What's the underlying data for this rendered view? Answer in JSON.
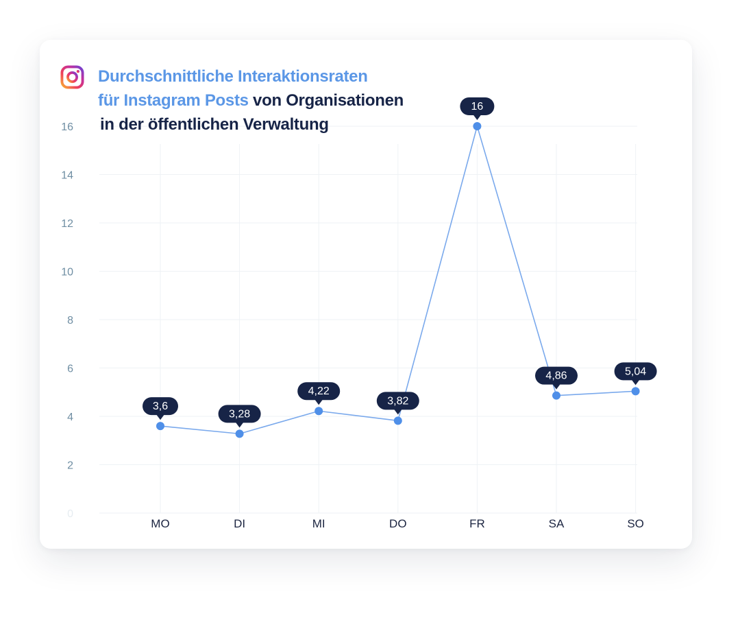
{
  "title": {
    "line1": "Durchschnittliche Interaktionsraten",
    "line2_accent": "für Instagram Posts",
    "line2_rest": " von Organisationen",
    "line3": "in der öffentlichen Verwaltung"
  },
  "icon": "instagram-icon",
  "colors": {
    "accent": "#5b97e6",
    "line": "#7aa9ec",
    "point": "#4f8fe8",
    "label_bg": "#172447",
    "title_dark": "#172447",
    "grid": "#eef2f5",
    "tick": "#6f8ea3"
  },
  "chart_data": {
    "type": "line",
    "categories": [
      "MO",
      "DI",
      "MI",
      "DO",
      "FR",
      "SA",
      "SO"
    ],
    "series": [
      {
        "values": [
          3.6,
          3.28,
          4.22,
          3.82,
          16,
          4.86,
          5.04
        ],
        "labels": [
          "3,6",
          "3,28",
          "4,22",
          "3,82",
          "16",
          "4,86",
          "5,04"
        ]
      }
    ],
    "y_ticks": [
      0,
      2,
      4,
      6,
      8,
      10,
      12,
      14,
      16
    ],
    "ylim": [
      0,
      16
    ],
    "grid": true,
    "legend": "none",
    "xlabel": "",
    "ylabel": ""
  }
}
